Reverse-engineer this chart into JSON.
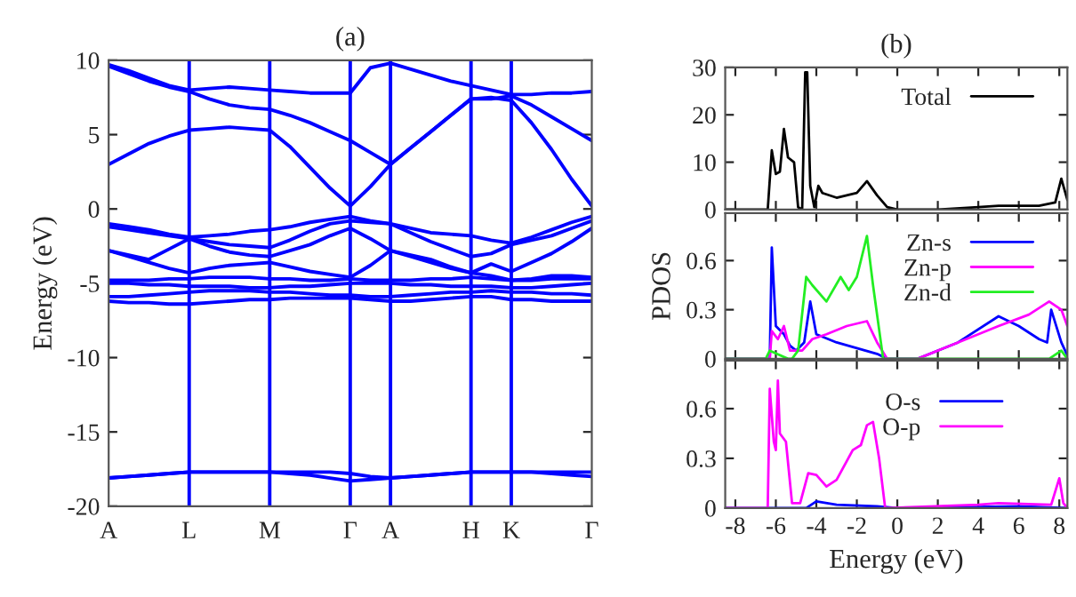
{
  "chart_data": [
    {
      "type": "line",
      "title": "(a)",
      "ylabel": "Energy (eV)",
      "grid": "x",
      "categories": [
        "A",
        null,
        null,
        null,
        "L",
        null,
        null,
        null,
        "M",
        null,
        null,
        null,
        "Γ",
        null,
        "A",
        null,
        null,
        null,
        "H",
        null,
        "K",
        null,
        null,
        null,
        "Γ"
      ],
      "ylim": [
        -20,
        10
      ],
      "yticks": [
        -20,
        -15,
        -10,
        -5,
        0,
        5,
        10
      ],
      "series": [
        {
          "color": "#0000ff",
          "values": [
            -18.1,
            -18.0,
            -17.9,
            -17.8,
            -17.7,
            -17.7,
            -17.7,
            -17.7,
            -17.7,
            -17.8,
            -17.9,
            -18.1,
            -18.3,
            -18.2,
            -18.1,
            -18.0,
            -17.9,
            -17.8,
            -17.7,
            -17.7,
            -17.7,
            -17.7,
            -17.8,
            -17.9,
            -18.0
          ]
        },
        {
          "color": "#0000ff",
          "values": [
            -18.1,
            -18.0,
            -17.9,
            -17.8,
            -17.7,
            -17.7,
            -17.7,
            -17.7,
            -17.7,
            -17.7,
            -17.7,
            -17.7,
            -17.8,
            -18.0,
            -18.1,
            -18.0,
            -17.9,
            -17.8,
            -17.7,
            -17.7,
            -17.7,
            -17.7,
            -17.7,
            -17.7,
            -17.7
          ]
        },
        {
          "color": "#0000ff",
          "values": [
            -4.8,
            -4.8,
            -4.8,
            -4.7,
            -4.7,
            -4.6,
            -4.6,
            -4.6,
            -4.7,
            -4.7,
            -4.8,
            -4.8,
            -4.7,
            -4.8,
            -4.8,
            -4.8,
            -4.7,
            -4.7,
            -4.6,
            -4.7,
            -4.8,
            -4.8,
            -4.7,
            -4.7,
            -4.7
          ]
        },
        {
          "color": "#0000ff",
          "values": [
            -5.0,
            -5.0,
            -5.1,
            -5.1,
            -5.2,
            -5.2,
            -5.2,
            -5.3,
            -5.3,
            -5.2,
            -5.2,
            -5.1,
            -5.0,
            -5.0,
            -5.0,
            -5.1,
            -5.1,
            -5.2,
            -5.2,
            -5.2,
            -5.3,
            -5.3,
            -5.2,
            -5.1,
            -5.0
          ]
        },
        {
          "color": "#0000ff",
          "values": [
            -5.9,
            -5.9,
            -5.8,
            -5.7,
            -5.6,
            -5.5,
            -5.5,
            -5.5,
            -5.6,
            -5.6,
            -5.7,
            -5.8,
            -5.8,
            -5.9,
            -5.9,
            -5.8,
            -5.7,
            -5.6,
            -5.6,
            -5.5,
            -5.6,
            -5.6,
            -5.7,
            -5.7,
            -5.8
          ]
        },
        {
          "color": "#0000ff",
          "values": [
            -6.2,
            -6.3,
            -6.3,
            -6.4,
            -6.4,
            -6.3,
            -6.2,
            -6.1,
            -6.1,
            -6.0,
            -6.0,
            -6.0,
            -6.0,
            -6.1,
            -6.2,
            -6.2,
            -6.1,
            -6.0,
            -5.9,
            -5.9,
            -6.1,
            -6.1,
            -6.2,
            -6.2,
            -6.2
          ]
        },
        {
          "color": "#0000ff",
          "values": [
            -1.0,
            -1.2,
            -1.4,
            -1.7,
            -1.9,
            -1.8,
            -1.7,
            -1.5,
            -1.4,
            -1.2,
            -0.9,
            -0.7,
            -0.5,
            -0.8,
            -1.0,
            -1.3,
            -1.6,
            -1.7,
            -1.8,
            -2.1,
            -2.3,
            -1.9,
            -1.4,
            -0.9,
            -0.5
          ]
        },
        {
          "color": "#0000ff",
          "values": [
            -1.2,
            -1.4,
            -1.6,
            -1.8,
            -2.0,
            -2.2,
            -2.4,
            -2.5,
            -2.6,
            -2.1,
            -1.5,
            -1.0,
            -0.8,
            -0.9,
            -1.0,
            -1.6,
            -2.2,
            -2.7,
            -3.2,
            -3.0,
            -2.4,
            -2.1,
            -1.8,
            -1.3,
            -0.8
          ]
        },
        {
          "color": "#0000ff",
          "values": [
            -2.8,
            -3.1,
            -3.4,
            -2.7,
            -2.0,
            -2.5,
            -2.9,
            -3.1,
            -3.2,
            -2.8,
            -2.4,
            -1.8,
            -1.3,
            -2.0,
            -2.8,
            -3.2,
            -3.6,
            -4.0,
            -4.3,
            -3.7,
            -4.2,
            -3.6,
            -3.0,
            -2.2,
            -1.3
          ]
        },
        {
          "color": "#0000ff",
          "values": [
            -2.8,
            -3.2,
            -3.6,
            -4.0,
            -4.3,
            -4.0,
            -3.8,
            -3.7,
            -3.6,
            -3.9,
            -4.2,
            -4.4,
            -4.6,
            -3.8,
            -2.8,
            -3.1,
            -3.4,
            -3.9,
            -4.3,
            -4.5,
            -4.8,
            -4.7,
            -4.5,
            -4.5,
            -4.6
          ]
        },
        {
          "color": "#0000ff",
          "values": [
            3.0,
            3.7,
            4.4,
            4.9,
            5.3,
            5.4,
            5.5,
            5.4,
            5.3,
            4.2,
            2.8,
            1.4,
            0.2,
            1.5,
            3.0,
            4.1,
            5.2,
            6.3,
            7.4,
            7.5,
            7.3,
            5.8,
            4.0,
            2.0,
            0.2
          ]
        },
        {
          "color": "#0000ff",
          "values": [
            9.6,
            9.1,
            8.6,
            8.2,
            7.9,
            7.4,
            7.0,
            6.8,
            6.7,
            6.3,
            5.8,
            5.2,
            4.6,
            3.8,
            3.0,
            4.1,
            5.2,
            6.3,
            7.4,
            7.4,
            7.6,
            7.0,
            6.2,
            5.4,
            4.6
          ]
        },
        {
          "color": "#0000ff",
          "values": [
            9.7,
            9.3,
            8.8,
            8.3,
            8.0,
            8.1,
            8.2,
            8.1,
            8.0,
            7.9,
            7.8,
            7.8,
            7.8,
            9.5,
            9.8,
            9.4,
            9.0,
            8.6,
            8.3,
            8.0,
            7.7,
            7.7,
            7.8,
            7.8,
            7.9
          ]
        }
      ]
    },
    {
      "type": "line",
      "title": "(b)",
      "xlim": [
        -8.5,
        8.4
      ],
      "xticks": [
        -8,
        -6,
        -4,
        -2,
        0,
        2,
        4,
        6,
        8
      ],
      "ylim": [
        0,
        30
      ],
      "yticks": [
        0,
        10,
        20,
        30
      ],
      "tick_labels": "y",
      "legend": "top right",
      "series": [
        {
          "name": "Total",
          "color": "#000000",
          "x": [
            -8.5,
            -6.4,
            -6.2,
            -6.0,
            -5.8,
            -5.6,
            -5.4,
            -5.1,
            -4.9,
            -4.7,
            -4.55,
            -4.45,
            -4.3,
            -4.1,
            -3.9,
            -3.7,
            -3.0,
            -2.5,
            -2.0,
            -1.5,
            -1.0,
            -0.5,
            0,
            2,
            4,
            5,
            7,
            7.8,
            8.1,
            8.4
          ],
          "values": [
            0,
            0,
            12.5,
            7.5,
            8,
            17,
            11,
            10,
            0.5,
            0,
            29,
            29,
            5,
            0.5,
            5,
            3.5,
            2.5,
            3,
            3.5,
            6,
            3,
            0.5,
            0,
            0,
            0.5,
            0.8,
            0.8,
            1.5,
            6.5,
            2
          ]
        }
      ]
    },
    {
      "type": "line",
      "ylabel": "PDOS",
      "xlim": [
        -8.5,
        8.4
      ],
      "xticks": [
        -8,
        -6,
        -4,
        -2,
        0,
        2,
        4,
        6,
        8
      ],
      "ylim": [
        0,
        0.89
      ],
      "yticks": [
        0,
        0.3,
        0.6
      ],
      "tick_labels": "y",
      "legend": "top right",
      "series": [
        {
          "name": "Zn-s",
          "color": "#0000ff",
          "x": [
            -8.5,
            -6.3,
            -6.2,
            -6.0,
            -5.6,
            -5.3,
            -5.0,
            -4.6,
            -4.3,
            -4.0,
            -3.0,
            -1.0,
            -0.5,
            1,
            3,
            5,
            6,
            7,
            7.4,
            7.6,
            7.9,
            8.1,
            8.4
          ],
          "values": [
            0,
            0,
            0.68,
            0.2,
            0.15,
            0.08,
            0.05,
            0.1,
            0.35,
            0.15,
            0.1,
            0.03,
            0,
            0,
            0.1,
            0.26,
            0.2,
            0.12,
            0.1,
            0.3,
            null,
            0.1,
            0.02
          ]
        },
        {
          "name": "Zn-p",
          "color": "#ff00ff",
          "x": [
            -8.5,
            -6.3,
            -6.2,
            -5.9,
            -5.6,
            -5.3,
            -4.7,
            -4.2,
            -3.5,
            -2.5,
            -1.5,
            -1.0,
            -0.5,
            1,
            3,
            5,
            6.5,
            7.5,
            7.9,
            8.1,
            8.4
          ],
          "values": [
            0,
            0,
            0.17,
            0.12,
            0.2,
            0.05,
            0.05,
            0.12,
            0.15,
            0.2,
            0.23,
            0.1,
            0,
            0,
            0.1,
            0.2,
            0.27,
            0.35,
            null,
            0.3,
            0.2
          ]
        },
        {
          "name": "Zn-d",
          "color": "#22ee22",
          "x": [
            -8.5,
            -6.5,
            -6.42,
            -6.3,
            -5.4,
            -5.3,
            -5.2,
            -4.9,
            -4.75,
            -4.6,
            -4.5,
            -4.2,
            -3.5,
            -2.8,
            -2.4,
            -2.0,
            -1.5,
            -1.2,
            -0.7,
            7.5,
            8.1,
            8.4
          ],
          "values": [
            0,
            0,
            null,
            0.05,
            0,
            null,
            0,
            0.05,
            null,
            null,
            0.5,
            0.45,
            0.35,
            0.5,
            0.42,
            0.5,
            0.75,
            0.45,
            0,
            0,
            0.05,
            0
          ]
        }
      ]
    },
    {
      "type": "line",
      "xlabel": "Energy (eV)",
      "xlim": [
        -8.5,
        8.4
      ],
      "xticks": [
        -8,
        -6,
        -4,
        -2,
        0,
        2,
        4,
        6,
        8
      ],
      "ylim": [
        0,
        0.89
      ],
      "yticks": [
        0,
        0.3,
        0.6
      ],
      "legend": "top right",
      "series": [
        {
          "name": "O-s",
          "color": "#0000ff",
          "x": [
            -8.5,
            -4.5,
            -4.0,
            -3.0,
            -1.0,
            0,
            6,
            8.4
          ],
          "values": [
            0,
            0,
            0.04,
            0.02,
            0.01,
            0,
            0.01,
            0
          ]
        },
        {
          "name": "O-p",
          "color": "#ff00ff",
          "x": [
            -8.5,
            -6.4,
            -6.3,
            -6.1,
            -6.0,
            -5.9,
            -5.8,
            -5.5,
            -5.2,
            -4.8,
            -4.4,
            -4.0,
            -3.5,
            -3.0,
            -2.2,
            -1.8,
            -1.5,
            -1.2,
            -0.9,
            -0.6,
            4,
            5,
            7.6,
            8.0,
            8.2,
            8.4
          ],
          "values": [
            0,
            0,
            0.72,
            0.4,
            0.35,
            0.77,
            0.45,
            0.4,
            0.03,
            0.03,
            0.21,
            0.2,
            0.13,
            0.17,
            0.35,
            0.38,
            0.5,
            0.52,
            0.3,
            0,
            0.02,
            0.03,
            0.02,
            0.18,
            0.03,
            0
          ]
        }
      ]
    }
  ]
}
